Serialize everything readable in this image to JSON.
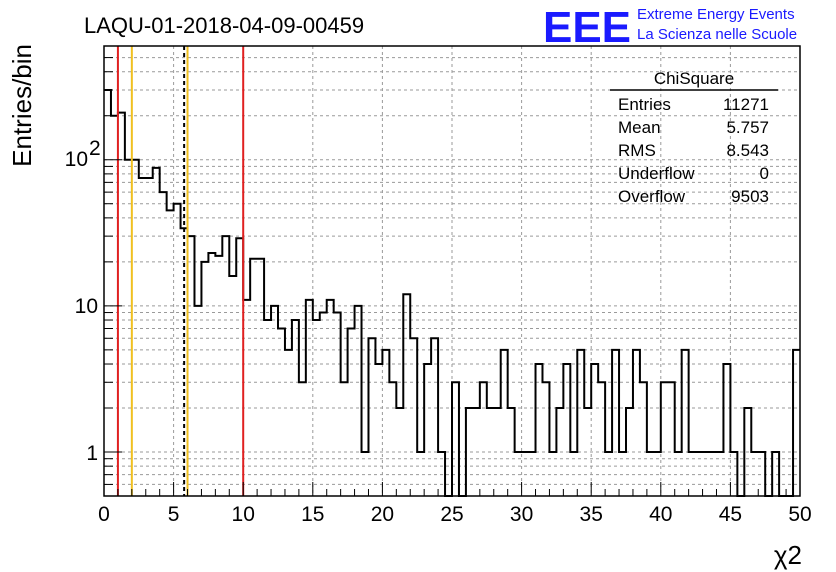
{
  "header": {
    "title": "LAQU-01-2018-04-09-00459",
    "logo_text": "EEE",
    "org_line1": "Extreme Energy Events",
    "org_line2": "La Scienza nelle Scuole"
  },
  "stats_box": {
    "title": "ChiSquare",
    "rows": [
      {
        "label": "Entries",
        "value": "11271"
      },
      {
        "label": "Mean",
        "value": "5.757"
      },
      {
        "label": "RMS",
        "value": "8.543"
      },
      {
        "label": "Underflow",
        "value": "0"
      },
      {
        "label": "Overflow",
        "value": "9503"
      }
    ]
  },
  "chart_data": {
    "type": "histogram",
    "title": "LAQU-01-2018-04-09-00459",
    "xlabel": "χ2",
    "ylabel": "Entries/bin",
    "xlim": [
      0,
      50
    ],
    "ylim": [
      0.5,
      600
    ],
    "yscale": "log",
    "grid": true,
    "bin_width": 0.5,
    "x_ticks": [
      0,
      5,
      10,
      15,
      20,
      25,
      30,
      35,
      40,
      45,
      50
    ],
    "x_tick_labels": [
      "0",
      "5",
      "10",
      "15",
      "20",
      "25",
      "30",
      "35",
      "40",
      "45",
      "50"
    ],
    "y_ticks": [
      1,
      10,
      100
    ],
    "y_tick_labels": [
      "1",
      "10",
      "10",
      "2"
    ],
    "bin_edges_start": 0,
    "counts": [
      300,
      200,
      210,
      100,
      100,
      75,
      75,
      88,
      60,
      45,
      50,
      34,
      30,
      10,
      20,
      23,
      22,
      30,
      16,
      29,
      11,
      21,
      21,
      8,
      10,
      7,
      5,
      8,
      3,
      11,
      8,
      9,
      11,
      9,
      3,
      7,
      10,
      1,
      6,
      4,
      5,
      3,
      2,
      12,
      6,
      1,
      4,
      6,
      1,
      0,
      3,
      0,
      2,
      2,
      3,
      2,
      2,
      5,
      2,
      1,
      1,
      1,
      4,
      3,
      1,
      2,
      4,
      1,
      5,
      2,
      4,
      3,
      1,
      5,
      1,
      2,
      5,
      3,
      1,
      1,
      3,
      3,
      1,
      5,
      1,
      1,
      1,
      1,
      1,
      4,
      1,
      0,
      2,
      1,
      1,
      0,
      1,
      0,
      0,
      5
    ],
    "vertical_lines": [
      {
        "x": 1,
        "color": "#e02020",
        "style": "solid"
      },
      {
        "x": 2,
        "color": "#f0c020",
        "style": "solid"
      },
      {
        "x": 5.757,
        "color": "#000000",
        "style": "dashed"
      },
      {
        "x": 6,
        "color": "#f0c020",
        "style": "solid"
      },
      {
        "x": 10,
        "color": "#e02020",
        "style": "solid"
      }
    ]
  }
}
